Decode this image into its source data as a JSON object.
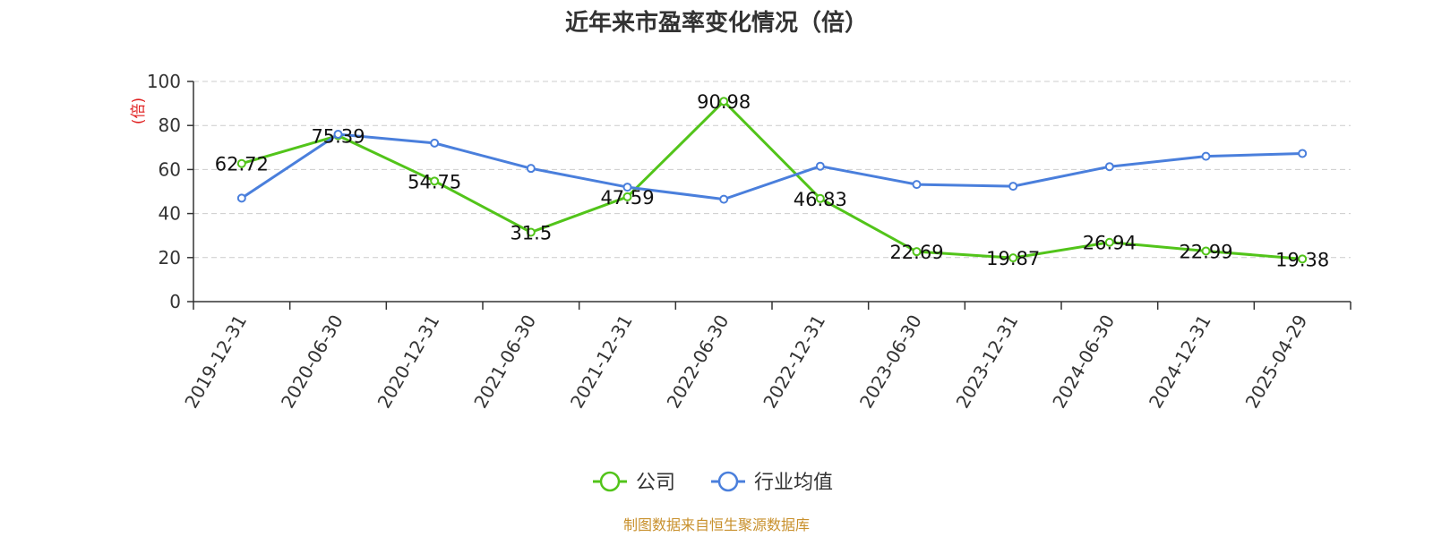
{
  "chart_data": {
    "type": "line",
    "title": "近年来市盈率变化情况（倍）",
    "ylabel": "(倍)",
    "xlabel": "",
    "ylim": [
      0,
      100
    ],
    "yticks": [
      0,
      20,
      40,
      60,
      80,
      100
    ],
    "grid": true,
    "categories": [
      "2019-12-31",
      "2020-06-30",
      "2020-12-31",
      "2021-06-30",
      "2021-12-31",
      "2022-06-30",
      "2022-12-31",
      "2023-06-30",
      "2023-12-31",
      "2024-06-30",
      "2024-12-31",
      "2025-04-29"
    ],
    "series": [
      {
        "name": "公司",
        "color": "#52c41a",
        "values": [
          62.72,
          75.39,
          54.75,
          31.5,
          47.59,
          90.98,
          46.83,
          22.69,
          19.87,
          26.94,
          22.99,
          19.38
        ],
        "labels": [
          "62.72",
          "75.39",
          "54.75",
          "31.5",
          "47.59",
          "90.98",
          "46.83",
          "22.69",
          "19.87",
          "26.94",
          "22.99",
          "19.38"
        ]
      },
      {
        "name": "行业均值",
        "color": "#4a7fdc",
        "values": [
          47,
          76,
          72,
          60.5,
          52,
          46.5,
          61.5,
          53.2,
          52.4,
          61.3,
          66,
          67.3
        ]
      }
    ],
    "legend_position": "bottom-center"
  },
  "source_text": "制图数据来自恒生聚源数据库"
}
